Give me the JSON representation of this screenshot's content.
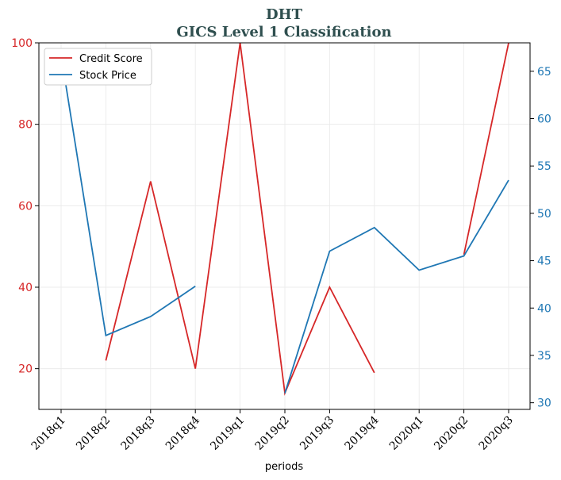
{
  "chart_data": {
    "type": "line",
    "title": "DHT",
    "subtitle": "GICS Level 1 Classification",
    "xlabel": "periods",
    "categories": [
      "2018q1",
      "2018q2",
      "2018q3",
      "2018q4",
      "2019q1",
      "2019q2",
      "2019q3",
      "2019q4",
      "2020q1",
      "2020q2",
      "2020q3"
    ],
    "y_left": {
      "ylim": [
        10,
        100
      ],
      "ticks": [
        20,
        40,
        60,
        80,
        100
      ],
      "color": "#d62728"
    },
    "y_right": {
      "ylim": [
        29.3,
        68
      ],
      "ticks": [
        30,
        35,
        40,
        45,
        50,
        55,
        60,
        65
      ],
      "color": "#1f77b4"
    },
    "grid": true,
    "legend_position": "top-left",
    "series": [
      {
        "name": "Credit Score",
        "axis": "left",
        "color": "#d62728",
        "values": [
          null,
          22,
          66,
          20,
          100,
          14,
          40,
          19,
          null,
          48,
          100
        ]
      },
      {
        "name": "Stock Price",
        "axis": "right",
        "color": "#1f77b4",
        "values": [
          66.7,
          37.1,
          39.1,
          42.3,
          null,
          31.0,
          46.0,
          48.5,
          44.0,
          45.5,
          53.5
        ]
      }
    ]
  }
}
